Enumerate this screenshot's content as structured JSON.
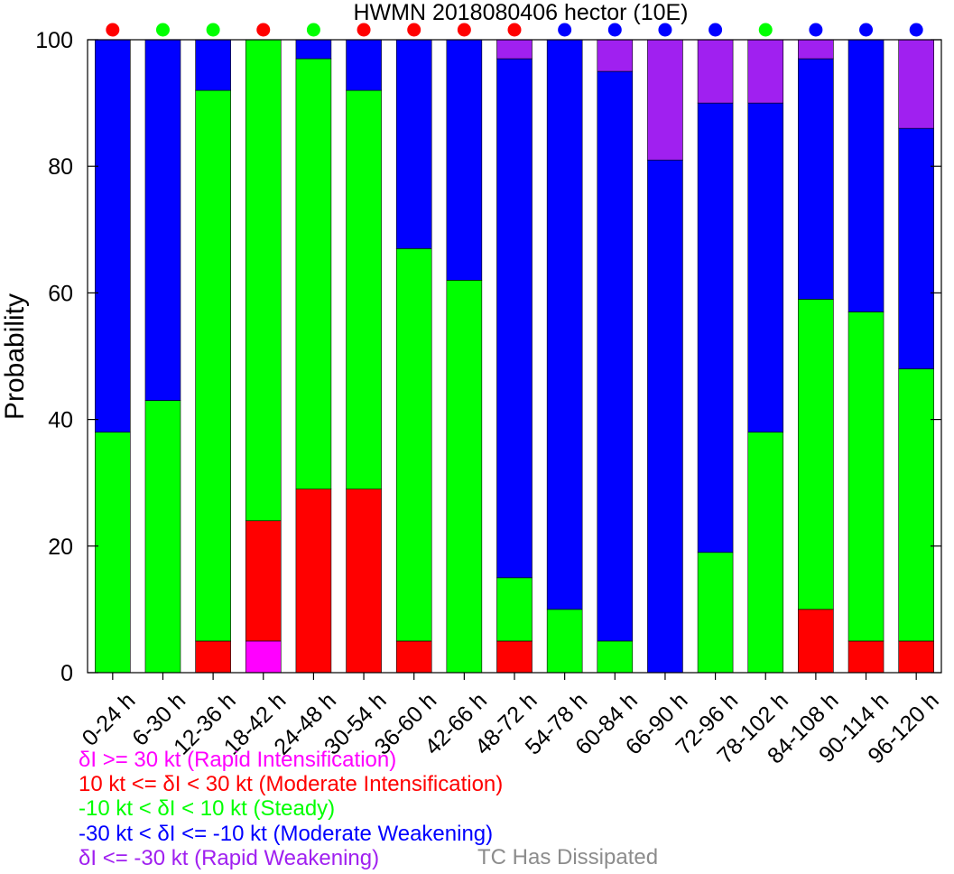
{
  "chart_data": {
    "type": "bar",
    "stacked": true,
    "title": "HWMN 2018080406 hector (10E)",
    "ylabel": "Probability",
    "xlabel": "",
    "ylim": [
      0,
      100
    ],
    "yticks": [
      0,
      20,
      40,
      60,
      80,
      100
    ],
    "categories": [
      "0-24 h",
      "6-30 h",
      "12-36 h",
      "18-42 h",
      "24-48 h",
      "30-54 h",
      "36-60 h",
      "42-66 h",
      "48-72 h",
      "54-78 h",
      "60-84 h",
      "66-90 h",
      "72-96 h",
      "78-102 h",
      "84-108 h",
      "90-114 h",
      "96-120 h"
    ],
    "series": [
      {
        "name": "Rapid Intensification",
        "color": "#ff00ff",
        "values": [
          0,
          0,
          0,
          5,
          0,
          0,
          0,
          0,
          0,
          0,
          0,
          0,
          0,
          0,
          0,
          0,
          0
        ]
      },
      {
        "name": "Moderate Intensification",
        "color": "#ff0000",
        "values": [
          0,
          0,
          5,
          19,
          29,
          29,
          5,
          0,
          5,
          0,
          0,
          0,
          0,
          0,
          10,
          5,
          5
        ]
      },
      {
        "name": "Steady",
        "color": "#00ff00",
        "values": [
          38,
          43,
          87,
          76,
          68,
          63,
          62,
          62,
          10,
          10,
          5,
          0,
          19,
          38,
          49,
          52,
          43
        ]
      },
      {
        "name": "Moderate Weakening",
        "color": "#0000ff",
        "values": [
          62,
          57,
          8,
          0,
          3,
          8,
          33,
          38,
          82,
          90,
          90,
          81,
          71,
          52,
          38,
          43,
          38
        ]
      },
      {
        "name": "Rapid Weakening",
        "color": "#a020f0",
        "values": [
          0,
          0,
          0,
          0,
          0,
          0,
          0,
          0,
          3,
          0,
          5,
          19,
          10,
          10,
          3,
          0,
          14
        ]
      }
    ],
    "top_markers": [
      "red",
      "green",
      "green",
      "red",
      "green",
      "red",
      "red",
      "red",
      "red",
      "blue",
      "blue",
      "blue",
      "blue",
      "green",
      "blue",
      "blue",
      "blue"
    ],
    "marker_colors": {
      "red": "#ff0000",
      "green": "#00ff00",
      "blue": "#0000ff"
    }
  },
  "legend": [
    {
      "text": "δI >= 30 kt (Rapid Intensification)",
      "color": "#ff00ff"
    },
    {
      "text": "10 kt <= δI < 30 kt (Moderate Intensification)",
      "color": "#ff0000"
    },
    {
      "text": "-10 kt < δI < 10 kt (Steady)",
      "color": "#00ff00"
    },
    {
      "text": "-30 kt < δI <= -10 kt (Moderate Weakening)",
      "color": "#0000ff"
    },
    {
      "text": "δI <= -30 kt (Rapid Weakening)",
      "color": "#a020f0"
    }
  ],
  "dissipated_label": "TC Has Dissipated",
  "dissipated_color": "#8c8c8c"
}
